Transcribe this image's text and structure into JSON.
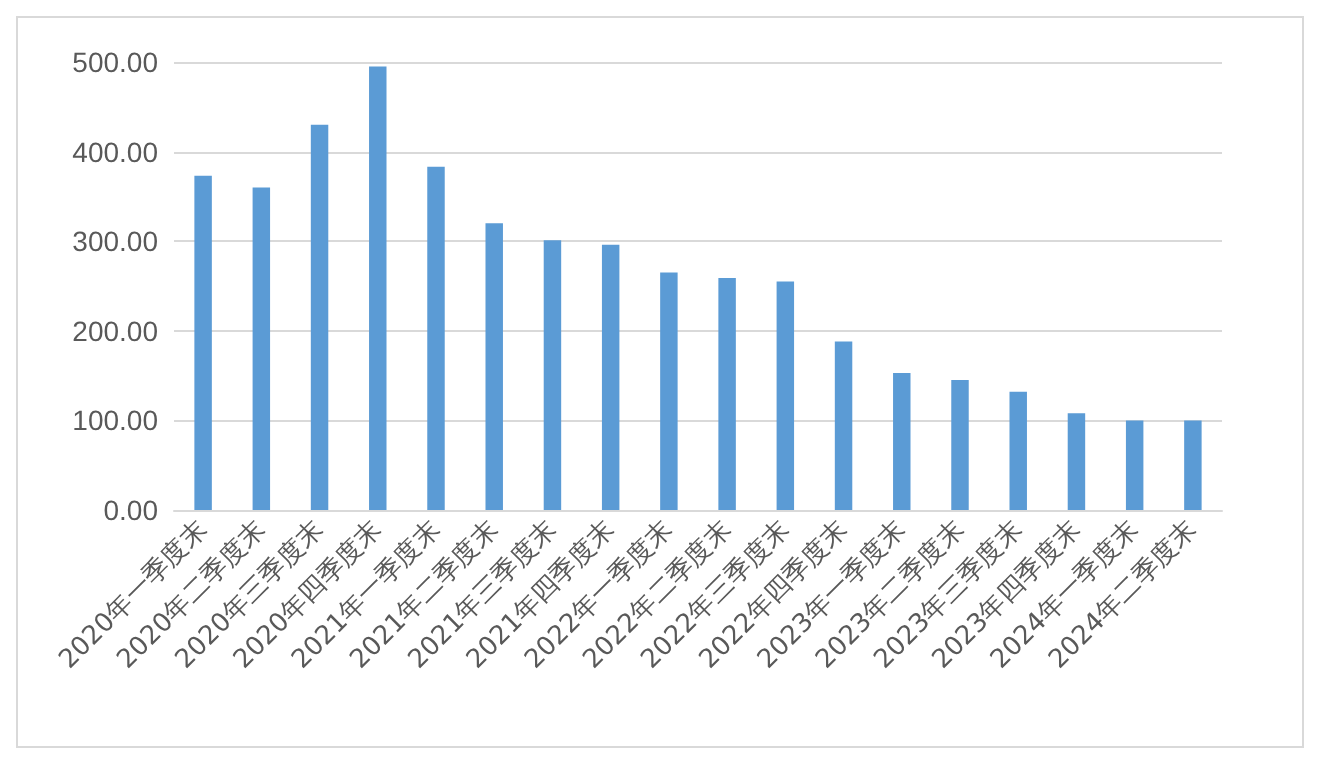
{
  "chart_data": {
    "type": "bar",
    "categories": [
      "2020年一季度末",
      "2020年二季度末",
      "2020年三季度末",
      "2020年四季度末",
      "2021年一季度末",
      "2021年二季度末",
      "2021年三季度末",
      "2021年四季度末",
      "2022年一季度末",
      "2022年二季度末",
      "2022年三季度末",
      "2022年四季度末",
      "2023年一季度末",
      "2023年二季度末",
      "2023年三季度末",
      "2023年四季度末",
      "2024年一季度末",
      "2024年二季度末"
    ],
    "values": [
      373,
      360,
      430,
      495,
      383,
      320,
      301,
      296,
      265,
      259,
      255,
      188,
      153,
      145,
      132,
      108,
      100,
      100
    ],
    "color": "#5b9bd5",
    "ylim": [
      0,
      500
    ],
    "yticks": [
      {
        "value": 0,
        "label": "0.00"
      },
      {
        "value": 100,
        "label": "100.00"
      },
      {
        "value": 200,
        "label": "200.00"
      },
      {
        "value": 300,
        "label": "300.00"
      },
      {
        "value": 400,
        "label": "400.00"
      },
      {
        "value": 500,
        "label": "500.00"
      }
    ],
    "grid": "y"
  }
}
